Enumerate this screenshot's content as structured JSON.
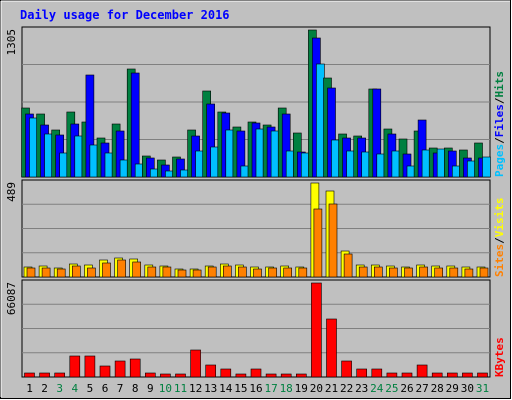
{
  "chart_data": {
    "type": "bar",
    "title": "Daily usage for December 2016",
    "categories": [
      "1",
      "2",
      "3",
      "4",
      "5",
      "6",
      "7",
      "8",
      "9",
      "10",
      "11",
      "12",
      "13",
      "14",
      "15",
      "16",
      "17",
      "18",
      "19",
      "20",
      "21",
      "22",
      "23",
      "24",
      "25",
      "26",
      "27",
      "28",
      "29",
      "30",
      "31"
    ],
    "weekend_days": [
      "3",
      "4",
      "10",
      "11",
      "17",
      "18",
      "24",
      "25",
      "31"
    ],
    "panels": [
      {
        "name": "pages-files-hits",
        "max_label": "1305",
        "ymax": 1305,
        "axis_labels": [
          {
            "text": "Pages",
            "color": "#00c0ff"
          },
          {
            "text": "Files",
            "color": "#0000ff"
          },
          {
            "text": "Hits",
            "color": "#008040"
          }
        ],
        "series": [
          {
            "name": "Hits",
            "color": "#008040",
            "values": [
              610,
              555,
              420,
              575,
              490,
              350,
              470,
              960,
              190,
              150,
              180,
              415,
              765,
              580,
              445,
              490,
              460,
              610,
              390,
              1305,
              880,
              385,
              365,
              780,
              430,
              340,
              405,
              260,
              260,
              240,
              305
            ]
          },
          {
            "name": "Files",
            "color": "#0000ff",
            "values": [
              560,
              465,
              370,
              470,
              905,
              300,
              410,
              920,
              165,
              110,
              160,
              360,
              650,
              570,
              405,
              475,
              445,
              560,
              220,
              1230,
              790,
              350,
              350,
              785,
              385,
              200,
              510,
              210,
              230,
              170,
              165
            ]
          },
          {
            "name": "Pages",
            "color": "#00c0ff",
            "values": [
              520,
              380,
              210,
              360,
              280,
              215,
              150,
              115,
              75,
              55,
              60,
              230,
              270,
              420,
              100,
              430,
              405,
              230,
              215,
              1000,
              330,
              230,
              225,
              200,
              230,
              95,
              240,
              245,
              100,
              140,
              175
            ]
          }
        ],
        "axis_sequence": [
          "Pages",
          "Files",
          "Hits"
        ]
      },
      {
        "name": "visits-sites",
        "max_label": "489",
        "ymax": 489,
        "axis_labels": [
          {
            "text": "Sites",
            "color": "#ff8000"
          },
          {
            "text": "Visits",
            "color": "#ffff00"
          }
        ],
        "series": [
          {
            "name": "Visits",
            "color": "#ffff00",
            "values": [
              52,
              58,
              45,
              70,
              60,
              88,
              100,
              95,
              62,
              55,
              42,
              40,
              58,
              68,
              62,
              50,
              52,
              55,
              52,
              489,
              445,
              135,
              62,
              62,
              55,
              52,
              62,
              55,
              55,
              50,
              52
            ]
          },
          {
            "name": "Sites",
            "color": "#ff8000",
            "values": [
              45,
              48,
              40,
              58,
              45,
              72,
              88,
              80,
              52,
              50,
              38,
              35,
              50,
              58,
              52,
              42,
              48,
              48,
              48,
              355,
              380,
              120,
              52,
              52,
              48,
              45,
              52,
              48,
              48,
              42,
              45
            ]
          }
        ]
      },
      {
        "name": "kbytes",
        "max_label": "66087",
        "ymax": 66087,
        "axis_labels": [
          {
            "text": "KBytes",
            "color": "#ff0000"
          }
        ],
        "series": [
          {
            "name": "KBytes",
            "color": "#ff0000",
            "values": [
              2700,
              2700,
              2700,
              15000,
              15000,
              8000,
              11500,
              13000,
              3000,
              2000,
              2000,
              19000,
              8500,
              5500,
              2000,
              5500,
              2000,
              2000,
              2000,
              66087,
              40500,
              11000,
              5500,
              5500,
              2500,
              2500,
              8500,
              2500,
              2500,
              2500,
              2500
            ]
          }
        ]
      }
    ],
    "colors": {
      "background": "#c0c0c0",
      "weekday_label": "#000000",
      "weekend_label": "#008040",
      "title": "#0000ff"
    }
  }
}
